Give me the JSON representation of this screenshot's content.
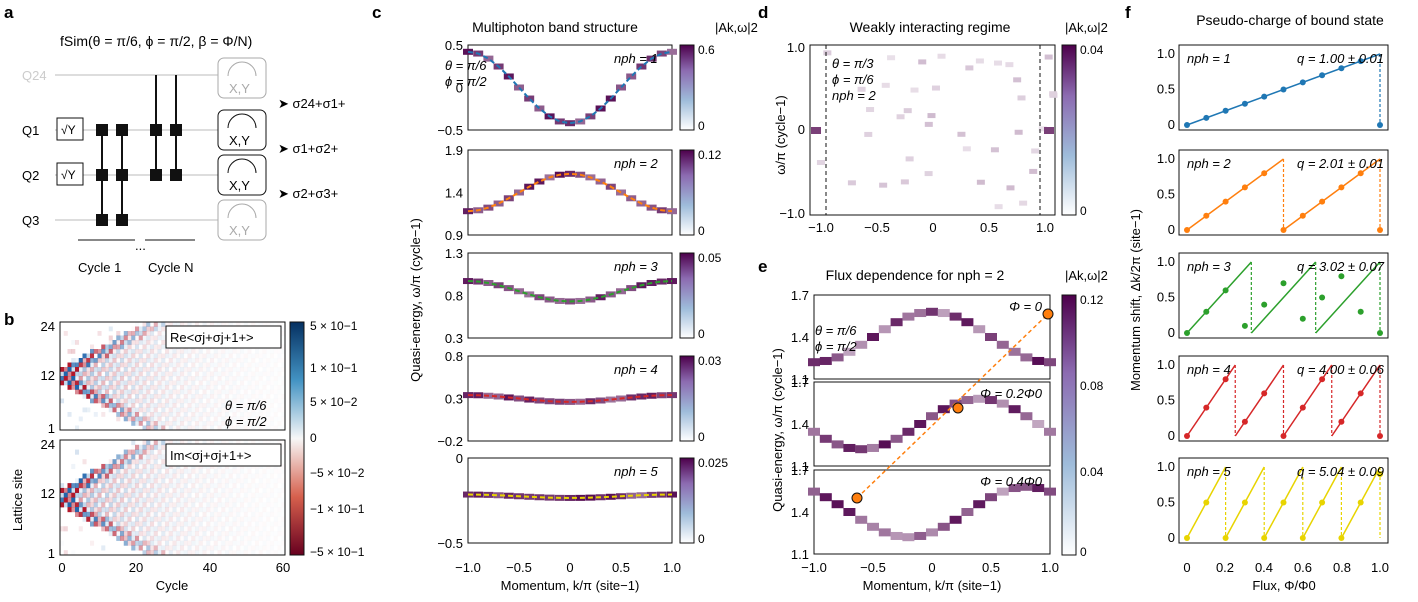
{
  "panel_labels": {
    "a": "a",
    "b": "b",
    "c": "c",
    "d": "d",
    "e": "e",
    "f": "f"
  },
  "panel_a": {
    "gate_title": "fSim(θ = π/6, ϕ = π/2, β = Φ/N)",
    "qubits": [
      "Q24",
      "Q1",
      "Q2",
      "Q3"
    ],
    "y_gate": "√Y",
    "meter_label": "X,Y",
    "correlators": [
      "σ24+σ1+",
      "σ1+σ2+",
      "σ2+σ3+"
    ],
    "dots": "...",
    "cycle_labels": [
      "Cycle 1",
      "Cycle N"
    ]
  },
  "panel_b": {
    "ylabel": "Lattice site",
    "xlabel": "Cycle",
    "xticks": [
      "0",
      "20",
      "40",
      "60"
    ],
    "yticks": [
      "24",
      "12",
      "1"
    ],
    "top_label": "Re<σj+σj+1+>",
    "bottom_label": "Im<σj+σj+1+>",
    "params": [
      "θ = π/6",
      "ϕ = π/2"
    ],
    "colorbar_ticks": [
      "5 × 10−1",
      "1 × 10−1",
      "5 × 10−2",
      "0",
      "−5 × 10−2",
      "−1 × 10−1",
      "−5 × 10−1"
    ],
    "colors": {
      "pos": "#2166ac",
      "neg": "#b2182b"
    }
  },
  "panel_c": {
    "title": "Multiphoton band structure",
    "cbar_title": "|Ak,ω|2",
    "ylabel": "Quasi-energy, ω/π (cycle−1)",
    "xlabel": "Momentum, k/π (site−1)",
    "xticks": [
      "−1.0",
      "−0.5",
      "0",
      "0.5",
      "1.0"
    ],
    "params": [
      "θ = π/6",
      "ϕ = π/2"
    ],
    "subplots": [
      {
        "nph": "nph = 1",
        "yticks": [
          "0.5",
          "0",
          "−0.5"
        ],
        "cbar": [
          "0.6",
          "0"
        ],
        "color": "#1f77b4"
      },
      {
        "nph": "nph = 2",
        "yticks": [
          "1.9",
          "1.4",
          "0.9"
        ],
        "cbar": [
          "0.12",
          "0"
        ],
        "color": "#ff7f0e"
      },
      {
        "nph": "nph = 3",
        "yticks": [
          "1.3",
          "0.8",
          "0.3"
        ],
        "cbar": [
          "0.05",
          "0"
        ],
        "color": "#2ca02c"
      },
      {
        "nph": "nph = 4",
        "yticks": [
          "0.8",
          "0.3",
          "−0.2"
        ],
        "cbar": [
          "0.03",
          "0"
        ],
        "color": "#d62728"
      },
      {
        "nph": "nph = 5",
        "yticks": [
          "0",
          "−0.5"
        ],
        "cbar": [
          "0.025",
          "0"
        ],
        "color": "#e8d400"
      }
    ]
  },
  "panel_d": {
    "title": "Weakly interacting regime",
    "cbar_title": "|Ak,ω|2",
    "ylabel": "ω/π (cycle−1)",
    "xticks": [
      "−1.0",
      "−0.5",
      "0",
      "0.5",
      "1.0"
    ],
    "yticks": [
      "1.0",
      "0",
      "−1.0"
    ],
    "params": [
      "θ = π/3",
      "ϕ = π/6",
      "nph = 2"
    ],
    "cbar": [
      "0.04",
      "0"
    ]
  },
  "panel_e": {
    "title": "Flux dependence for nph = 2",
    "cbar_title": "|Ak,ω|2",
    "ylabel": "Quasi-energy, ω/π (cycle−1)",
    "xlabel": "Momentum, k/π (site−1)",
    "xticks": [
      "−1.0",
      "−0.5",
      "0",
      "0.5",
      "1.0"
    ],
    "yticks": [
      "1.7",
      "1.4",
      "1.1"
    ],
    "params": [
      "θ = π/6",
      "ϕ = π/2"
    ],
    "flux_labels": [
      "Φ = 0",
      "Φ = 0.2Φ0",
      "Φ = 0.4Φ0"
    ],
    "cbar": [
      "0.12",
      "0.08",
      "0.04",
      "0"
    ]
  },
  "panel_f": {
    "title": "Pseudo-charge of bound state",
    "ylabel": "Momentum shift, Δk/2π (site−1)",
    "xlabel": "Flux, Φ/Φ0",
    "xticks": [
      "0",
      "0.2",
      "0.4",
      "0.6",
      "0.8",
      "1.0"
    ],
    "yticks": [
      "1.0",
      "0.5",
      "0"
    ],
    "rows": [
      {
        "nph": "nph = 1",
        "q": "q = 1.00 ± 0.01",
        "color": "#1f77b4"
      },
      {
        "nph": "nph = 2",
        "q": "q = 2.01 ± 0.01",
        "color": "#ff7f0e"
      },
      {
        "nph": "nph = 3",
        "q": "q = 3.02 ± 0.07",
        "color": "#2ca02c"
      },
      {
        "nph": "nph = 4",
        "q": "q = 4.00 ± 0.06",
        "color": "#d62728"
      },
      {
        "nph": "nph = 5",
        "q": "q = 5.04 ± 0.09",
        "color": "#e8d400"
      }
    ]
  },
  "chart_data": [
    {
      "type": "line",
      "title": "Pseudo-charge of bound state",
      "xlabel": "Flux, Φ/Φ0",
      "ylabel": "Momentum shift, Δk/2π (site−1)",
      "xlim": [
        0,
        1
      ],
      "ylim": [
        0,
        1
      ],
      "series": [
        {
          "name": "nph = 1",
          "q": "q = 1.00 ± 0.01",
          "x": [
            0,
            0.1,
            0.2,
            0.3,
            0.4,
            0.5,
            0.6,
            0.7,
            0.8,
            0.9,
            1.0
          ],
          "y": [
            0,
            0.1,
            0.2,
            0.3,
            0.4,
            0.5,
            0.6,
            0.7,
            0.8,
            0.9,
            0.0
          ]
        },
        {
          "name": "nph = 2",
          "q": "q = 2.01 ± 0.01",
          "x": [
            0,
            0.1,
            0.2,
            0.3,
            0.4,
            0.5,
            0.6,
            0.7,
            0.8,
            0.9,
            1.0
          ],
          "y": [
            0,
            0.2,
            0.4,
            0.6,
            0.8,
            0.0,
            0.2,
            0.4,
            0.6,
            0.8,
            0.0
          ]
        },
        {
          "name": "nph = 3",
          "q": "q = 3.02 ± 0.07",
          "x": [
            0,
            0.1,
            0.2,
            0.3,
            0.4,
            0.5,
            0.6,
            0.7,
            0.8,
            0.9,
            1.0
          ],
          "y": [
            0,
            0.3,
            0.6,
            0.1,
            0.4,
            0.7,
            0.2,
            0.5,
            0.8,
            0.3,
            0.0
          ]
        },
        {
          "name": "nph = 4",
          "q": "q = 4.00 ± 0.06",
          "x": [
            0,
            0.1,
            0.2,
            0.3,
            0.4,
            0.5,
            0.6,
            0.7,
            0.8,
            0.9,
            1.0
          ],
          "y": [
            0,
            0.4,
            0.8,
            0.2,
            0.6,
            0.0,
            0.4,
            0.8,
            0.2,
            0.6,
            0.0
          ]
        },
        {
          "name": "nph = 5",
          "q": "q = 5.04 ± 0.09",
          "x": [
            0,
            0.1,
            0.2,
            0.3,
            0.4,
            0.5,
            0.6,
            0.7,
            0.8,
            0.9,
            1.0
          ],
          "y": [
            0,
            0.5,
            0.0,
            0.5,
            0.0,
            0.5,
            0.0,
            0.5,
            0.0,
            0.5,
            0.9
          ]
        }
      ]
    },
    {
      "type": "heatmap",
      "title": "Multiphoton band structure",
      "xlabel": "Momentum, k/π (site−1)",
      "series": [
        {
          "name": "nph = 1",
          "band_center": 0,
          "band_amp": 0.35,
          "ylim": [
            -0.5,
            0.5
          ]
        },
        {
          "name": "nph = 2",
          "band_center": 1.4,
          "band_amp": 0.12,
          "ylim": [
            0.9,
            1.9
          ]
        },
        {
          "name": "nph = 3",
          "band_center": 0.85,
          "band_amp": 0.05,
          "ylim": [
            0.3,
            1.3
          ]
        },
        {
          "name": "nph = 4",
          "band_center": 0.38,
          "band_amp": 0.02,
          "ylim": [
            -0.2,
            0.8
          ]
        },
        {
          "name": "nph = 5",
          "band_center": -0.1,
          "band_amp": 0.01,
          "ylim": [
            -0.5,
            0.3
          ]
        }
      ]
    }
  ]
}
